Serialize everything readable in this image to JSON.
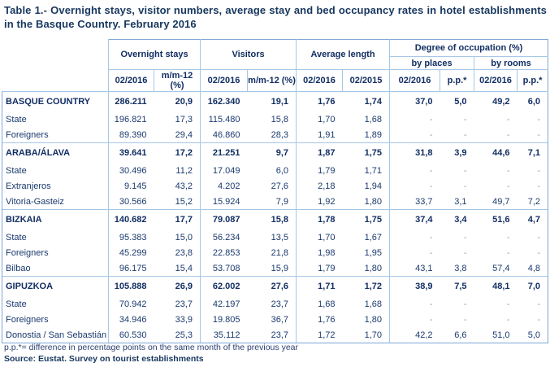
{
  "title": "Table 1.- Overnight stays, visitor numbers, average stay and bed occupancy rates in hotel establishments in the Basque Country. February 2016",
  "header": {
    "groups": [
      {
        "label": "Overnight stays"
      },
      {
        "label": "Visitors"
      },
      {
        "label": "Average length"
      },
      {
        "label": "Degree of occupation (%)",
        "subgroups": [
          "by places",
          "by rooms"
        ]
      }
    ],
    "columns": [
      "02/2016",
      "m/m-12 (%)",
      "02/2016",
      "m/m-12 (%)",
      "02/2016",
      "02/2015",
      "02/2016",
      "p.p.*",
      "02/2016",
      "p.p.*"
    ]
  },
  "table": {
    "rows": [
      {
        "label": "BASQUE COUNTRY",
        "section": true,
        "values": [
          "286.211",
          "20,9",
          "162.340",
          "19,1",
          "1,76",
          "1,74",
          "37,0",
          "5,0",
          "49,2",
          "6,0"
        ]
      },
      {
        "label": "State",
        "section": false,
        "values": [
          "196.821",
          "17,3",
          "115.480",
          "15,8",
          "1,70",
          "1,68",
          "-",
          "-",
          "-",
          "-"
        ]
      },
      {
        "label": "Foreigners",
        "section": false,
        "values": [
          "89.390",
          "29,4",
          "46.860",
          "28,3",
          "1,91",
          "1,89",
          "-",
          "-",
          "-",
          "-"
        ]
      },
      {
        "label": "ARABA/ÁLAVA",
        "section": true,
        "values": [
          "39.641",
          "17,2",
          "21.251",
          "9,7",
          "1,87",
          "1,75",
          "31,8",
          "3,9",
          "44,6",
          "7,1"
        ]
      },
      {
        "label": "State",
        "section": false,
        "values": [
          "30.496",
          "11,2",
          "17.049",
          "6,0",
          "1,79",
          "1,71",
          "-",
          "-",
          "-",
          "-"
        ]
      },
      {
        "label": "Extranjeros",
        "section": false,
        "values": [
          "9.145",
          "43,2",
          "4.202",
          "27,6",
          "2,18",
          "1,94",
          "-",
          "-",
          "-",
          "-"
        ]
      },
      {
        "label": "Vitoria-Gasteiz",
        "section": false,
        "values": [
          "30.566",
          "15,2",
          "15.924",
          "7,9",
          "1,92",
          "1,80",
          "33,7",
          "3,1",
          "49,7",
          "7,2"
        ]
      },
      {
        "label": "BIZKAIA",
        "section": true,
        "values": [
          "140.682",
          "17,7",
          "79.087",
          "15,8",
          "1,78",
          "1,75",
          "37,4",
          "3,4",
          "51,6",
          "4,7"
        ]
      },
      {
        "label": "State",
        "section": false,
        "values": [
          "95.383",
          "15,0",
          "56.234",
          "13,5",
          "1,70",
          "1,67",
          "-",
          "-",
          "-",
          "-"
        ]
      },
      {
        "label": "Foreigners",
        "section": false,
        "values": [
          "45.299",
          "23,8",
          "22.853",
          "21,8",
          "1,98",
          "1,95",
          "-",
          "-",
          "-",
          "-"
        ]
      },
      {
        "label": "Bilbao",
        "section": false,
        "values": [
          "96.175",
          "15,4",
          "53.708",
          "15,9",
          "1,79",
          "1,80",
          "43,1",
          "3,8",
          "57,4",
          "4,8"
        ]
      },
      {
        "label": "GIPUZKOA",
        "section": true,
        "values": [
          "105.888",
          "26,9",
          "62.002",
          "27,6",
          "1,71",
          "1,72",
          "38,9",
          "7,5",
          "48,1",
          "7,0"
        ]
      },
      {
        "label": "State",
        "section": false,
        "values": [
          "70.942",
          "23,7",
          "42.197",
          "23,7",
          "1,68",
          "1,68",
          "-",
          "-",
          "-",
          "-"
        ]
      },
      {
        "label": "Foreigners",
        "section": false,
        "values": [
          "34.946",
          "33,9",
          "19.805",
          "36,7",
          "1,76",
          "1,80",
          "-",
          "-",
          "-",
          "-"
        ]
      },
      {
        "label": "Donostia / San Sebastián",
        "section": false,
        "values": [
          "60.530",
          "25,3",
          "35.112",
          "23,7",
          "1,72",
          "1,70",
          "42,2",
          "6,6",
          "51,0",
          "5,0"
        ]
      }
    ]
  },
  "footnote": "p.p.*= difference in percentage points on the same month of the previous year",
  "source": "Source: Eustat. Survey on tourist establishments",
  "colors": {
    "text": "#1b3a6e",
    "text_bold": "#122e63",
    "grid_inner": "#a6c7e6",
    "grid_outer": "#7fa8d9"
  }
}
